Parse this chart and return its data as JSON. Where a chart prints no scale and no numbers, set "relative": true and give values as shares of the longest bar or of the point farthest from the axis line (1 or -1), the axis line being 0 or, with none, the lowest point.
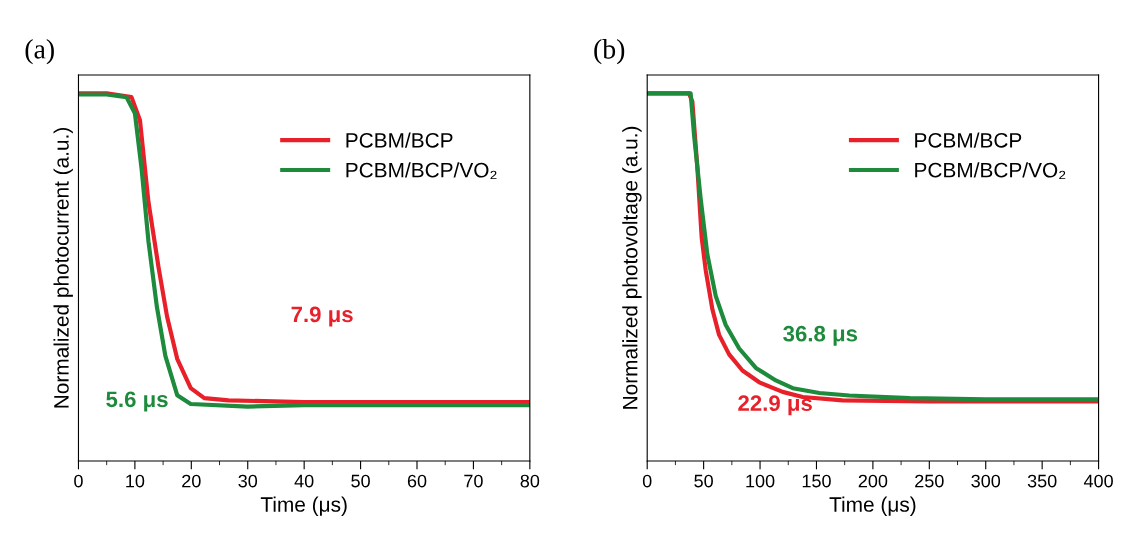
{
  "chart_data": [
    {
      "type": "line",
      "title": "(a)",
      "xlabel": "Time (μs)",
      "ylabel": "Normalized photocurrent (a.u.)",
      "relative": true,
      "xlim": [
        0,
        80
      ],
      "xticks": [
        0,
        10,
        20,
        30,
        40,
        50,
        60,
        70,
        80
      ],
      "tick_labels": "x",
      "legend": "top right",
      "marker": "none",
      "line_style": "solid",
      "grid": false,
      "annotations": [
        "7.9 μs",
        "5.6 μs"
      ],
      "series": [
        {
          "name": "PCBM/BCP",
          "color": "#e8202a",
          "x": [
            0,
            5,
            9.4,
            10.9,
            12.4,
            14.2,
            15.7,
            17.5,
            19.9,
            22.3,
            26.6,
            40,
            60,
            80
          ],
          "values": [
            1,
            1,
            0.99,
            0.927,
            0.705,
            0.526,
            0.393,
            0.278,
            0.198,
            0.171,
            0.165,
            0.16,
            0.16,
            0.16
          ]
        },
        {
          "name": "PCBM/BCP/VO₂",
          "color": "#1e8a3c",
          "x": [
            0,
            5,
            8.5,
            10,
            11.2,
            12.4,
            13.9,
            15.4,
            17.5,
            19.9,
            30,
            40,
            80
          ],
          "values": [
            0.997,
            0.997,
            0.99,
            0.946,
            0.793,
            0.598,
            0.419,
            0.286,
            0.179,
            0.155,
            0.148,
            0.152,
            0.152
          ]
        }
      ]
    },
    {
      "type": "line",
      "title": "(b)",
      "xlabel": "Time (μs)",
      "ylabel": "Normalized photovoltage (a.u.)",
      "relative": true,
      "xlim": [
        0,
        400
      ],
      "xticks": [
        0,
        50,
        100,
        150,
        200,
        250,
        300,
        350,
        400
      ],
      "tick_labels": "x",
      "legend": "top right",
      "marker": "none",
      "line_style": "solid",
      "grid": false,
      "annotations": [
        "22.9 μs",
        "36.8 μs"
      ],
      "series": [
        {
          "name": "PCBM/BCP",
          "color": "#e8202a",
          "x": [
            0,
            20,
            37,
            40,
            44.4,
            48.3,
            51.9,
            57.8,
            63.7,
            72.6,
            84.4,
            99.3,
            120,
            137.8,
            173,
            250,
            400
          ],
          "values": [
            1,
            1,
            1,
            0.978,
            0.8,
            0.607,
            0.518,
            0.412,
            0.343,
            0.29,
            0.246,
            0.214,
            0.188,
            0.174,
            0.165,
            0.162,
            0.162
          ]
        },
        {
          "name": "PCBM/BCP/VO₂",
          "color": "#1e8a3c",
          "x": [
            0,
            20,
            38.5,
            41.5,
            47.4,
            53.3,
            60.7,
            69.6,
            81.5,
            96.3,
            114,
            129,
            152.6,
            179,
            232.6,
            300,
            400
          ],
          "values": [
            1,
            1,
            1,
            0.887,
            0.713,
            0.562,
            0.449,
            0.37,
            0.306,
            0.253,
            0.219,
            0.198,
            0.185,
            0.178,
            0.171,
            0.168,
            0.168
          ]
        }
      ]
    }
  ]
}
